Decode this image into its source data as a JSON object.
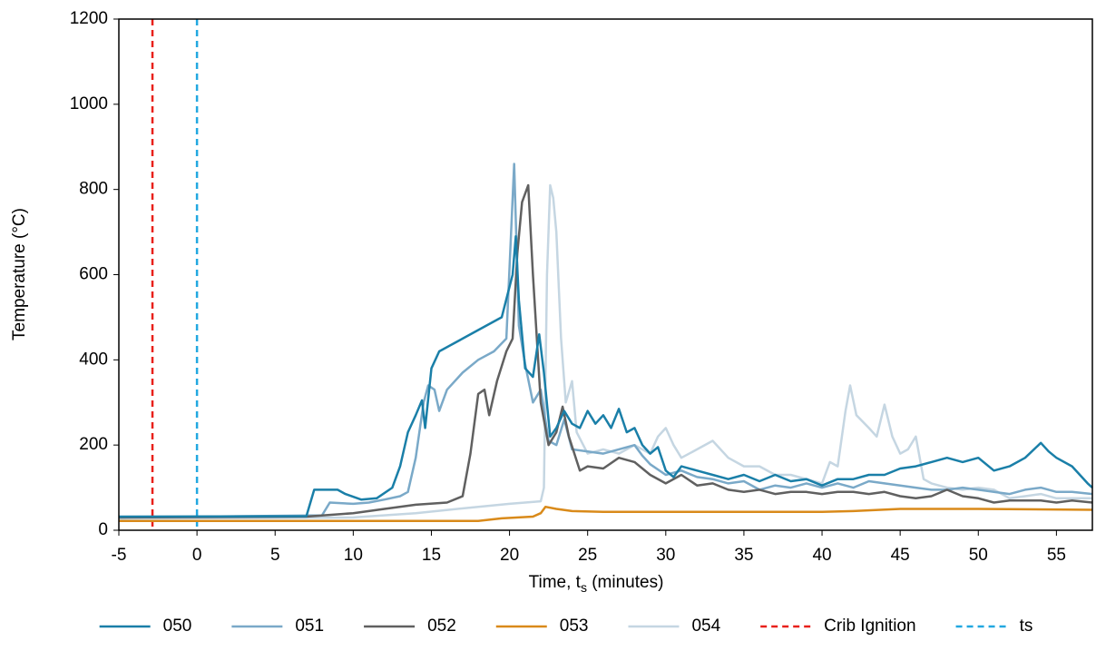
{
  "chart_data": {
    "type": "line",
    "y_label": "Temperature (°C)",
    "x_label_parts": [
      "Time, t",
      "s",
      " (minutes)"
    ],
    "xlim": [
      -5,
      57.3
    ],
    "xticks": [
      -5,
      0,
      5,
      10,
      15,
      20,
      25,
      30,
      35,
      40,
      45,
      50,
      55
    ],
    "ylim": [
      0,
      1200
    ],
    "yticks": [
      0,
      200,
      400,
      600,
      800,
      1000,
      1200
    ],
    "grid": false,
    "legend": "bottom",
    "series": [
      {
        "name": "050",
        "color": "#1a7fa8",
        "x": [
          -5,
          7,
          7.5,
          9,
          9.5,
          10.5,
          11.5,
          12.5,
          13,
          13.5,
          14,
          14.4,
          14.6,
          15,
          15.5,
          16.5,
          18,
          19.5,
          20.2,
          20.4,
          20.6,
          21,
          21.5,
          21.9,
          22.2,
          22.6,
          23,
          23.5,
          24,
          24.5,
          25,
          25.5,
          26,
          26.5,
          27,
          27.5,
          28,
          28.5,
          29,
          29.5,
          30,
          30.5,
          31,
          32,
          33,
          34,
          35,
          36,
          37,
          38,
          39,
          40,
          41,
          42,
          43,
          44,
          45,
          46,
          47,
          48,
          49,
          50,
          51,
          52,
          53,
          54,
          54.5,
          55,
          56,
          57,
          57.3
        ],
        "values": [
          32,
          33,
          95,
          95,
          85,
          72,
          75,
          100,
          150,
          230,
          270,
          305,
          240,
          380,
          420,
          440,
          470,
          500,
          600,
          690,
          540,
          380,
          360,
          460,
          370,
          220,
          240,
          280,
          250,
          240,
          280,
          250,
          270,
          240,
          285,
          230,
          240,
          200,
          180,
          195,
          140,
          125,
          150,
          140,
          130,
          120,
          130,
          115,
          130,
          115,
          120,
          105,
          120,
          120,
          130,
          130,
          145,
          150,
          160,
          170,
          160,
          170,
          140,
          150,
          170,
          205,
          185,
          170,
          150,
          110,
          100
        ]
      },
      {
        "name": "051",
        "color": "#7aa9c8",
        "x": [
          -5,
          8,
          8.5,
          10,
          11,
          12,
          13,
          13.5,
          14,
          14.5,
          14.8,
          15.2,
          15.5,
          16,
          17,
          18,
          19,
          19.8,
          20.3,
          20.6,
          21,
          21.5,
          22,
          22.5,
          23,
          23.5,
          24,
          25,
          26,
          27,
          28,
          28.5,
          29,
          30,
          31,
          32,
          33,
          34,
          35,
          36,
          37,
          38,
          39,
          40,
          41,
          42,
          43,
          44,
          45,
          46,
          47,
          48,
          49,
          50,
          51,
          52,
          53,
          54,
          55,
          56,
          57.3
        ],
        "values": [
          30,
          35,
          65,
          62,
          65,
          72,
          80,
          90,
          170,
          300,
          340,
          330,
          280,
          330,
          370,
          400,
          420,
          450,
          860,
          480,
          390,
          300,
          330,
          210,
          200,
          260,
          190,
          185,
          180,
          190,
          200,
          175,
          155,
          130,
          140,
          125,
          120,
          110,
          115,
          95,
          105,
          100,
          110,
          100,
          110,
          100,
          115,
          110,
          105,
          100,
          95,
          95,
          100,
          95,
          90,
          85,
          95,
          100,
          90,
          90,
          85
        ]
      },
      {
        "name": "052",
        "color": "#606060",
        "x": [
          -5,
          7,
          10,
          12,
          14,
          16,
          17,
          17.5,
          18,
          18.4,
          18.7,
          19.2,
          19.8,
          20.2,
          20.5,
          20.8,
          21.2,
          21.5,
          22,
          22.5,
          23,
          23.4,
          23.8,
          24.5,
          25,
          26,
          27,
          28,
          29,
          30,
          31,
          32,
          33,
          34,
          35,
          36,
          37,
          38,
          39,
          40,
          41,
          42,
          43,
          44,
          45,
          46,
          47,
          48,
          49,
          50,
          51,
          52,
          53,
          54,
          55,
          56,
          57.3
        ],
        "values": [
          30,
          32,
          40,
          50,
          60,
          65,
          80,
          180,
          320,
          330,
          270,
          350,
          420,
          450,
          650,
          770,
          810,
          600,
          300,
          200,
          230,
          290,
          220,
          140,
          150,
          145,
          170,
          160,
          130,
          110,
          130,
          105,
          110,
          95,
          90,
          95,
          85,
          90,
          90,
          85,
          90,
          90,
          85,
          90,
          80,
          75,
          80,
          95,
          80,
          75,
          65,
          70,
          70,
          70,
          65,
          70,
          65
        ]
      },
      {
        "name": "053",
        "color": "#d98a1a",
        "x": [
          -5,
          18,
          19.5,
          21.5,
          22,
          22.3,
          23,
          24,
          26,
          40,
          42,
          45,
          50,
          57.3
        ],
        "values": [
          22,
          22,
          28,
          32,
          40,
          55,
          50,
          45,
          43,
          43,
          45,
          50,
          50,
          48
        ]
      },
      {
        "name": "054",
        "color": "#c5d6e2",
        "x": [
          -5,
          10,
          14,
          18,
          20,
          22,
          22.2,
          22.4,
          22.6,
          22.8,
          23,
          23.3,
          23.6,
          24,
          24.3,
          25,
          26,
          27,
          28,
          29,
          29.5,
          30,
          30.5,
          31,
          32,
          33,
          34,
          35,
          36,
          37,
          38,
          39,
          40,
          40.5,
          41,
          41.5,
          41.8,
          42.2,
          43,
          43.5,
          44,
          44.5,
          45,
          45.5,
          46,
          46.5,
          47,
          48,
          49,
          50,
          51,
          52,
          53,
          54,
          55,
          56,
          57.3
        ],
        "values": [
          27,
          30,
          40,
          55,
          62,
          68,
          100,
          600,
          810,
          780,
          700,
          450,
          300,
          350,
          230,
          180,
          190,
          180,
          200,
          180,
          220,
          240,
          200,
          170,
          190,
          210,
          170,
          150,
          150,
          130,
          130,
          120,
          110,
          160,
          150,
          280,
          340,
          270,
          240,
          220,
          295,
          220,
          180,
          190,
          220,
          120,
          110,
          100,
          95,
          100,
          95,
          75,
          80,
          85,
          75,
          75,
          75
        ]
      }
    ],
    "vlines": [
      {
        "name": "Crib Ignition",
        "color": "#e8201a",
        "x": -2.85
      },
      {
        "name": "ts",
        "color": "#22a8e0",
        "x": 0
      }
    ]
  }
}
